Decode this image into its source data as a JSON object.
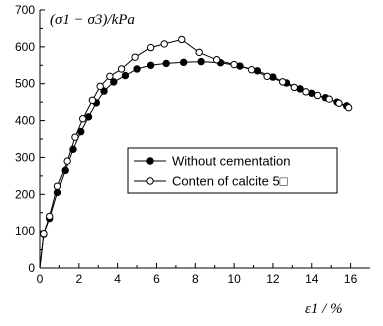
{
  "chart_data": {
    "type": "line",
    "ylabel": "(σ1 − σ3)/kPa",
    "xlabel": "ε1 / %",
    "xlim": [
      0,
      17
    ],
    "ylim": [
      0,
      700
    ],
    "xticks": [
      "0",
      "2",
      "4",
      "6",
      "8",
      "10",
      "12",
      "14",
      "16"
    ],
    "yticks": [
      "0",
      "100",
      "200",
      "300",
      "400",
      "500",
      "600",
      "700"
    ],
    "grid": false,
    "legend_position": "center-right",
    "series": [
      {
        "name": "Without cementation",
        "marker": "filled-circle",
        "color": "#000000",
        "points": [
          [
            0,
            0
          ],
          [
            0.2,
            92
          ],
          [
            0.5,
            134
          ],
          [
            0.9,
            205
          ],
          [
            1.3,
            265
          ],
          [
            1.7,
            322
          ],
          [
            2.1,
            370
          ],
          [
            2.5,
            410
          ],
          [
            2.9,
            448
          ],
          [
            3.3,
            480
          ],
          [
            3.8,
            505
          ],
          [
            4.4,
            522
          ],
          [
            5.0,
            540
          ],
          [
            5.7,
            550
          ],
          [
            6.5,
            555
          ],
          [
            7.4,
            558
          ],
          [
            8.3,
            560
          ],
          [
            9.3,
            557
          ],
          [
            10.3,
            548
          ],
          [
            11.2,
            535
          ],
          [
            12.0,
            518
          ],
          [
            12.7,
            502
          ],
          [
            13.4,
            486
          ],
          [
            14.0,
            474
          ],
          [
            14.7,
            462
          ],
          [
            15.3,
            450
          ],
          [
            15.8,
            440
          ]
        ]
      },
      {
        "name": "Conten of calcite 5□",
        "marker": "open-circle",
        "color": "#000000",
        "points": [
          [
            0,
            0
          ],
          [
            0.2,
            93
          ],
          [
            0.5,
            140
          ],
          [
            0.9,
            222
          ],
          [
            1.4,
            290
          ],
          [
            1.8,
            355
          ],
          [
            2.2,
            405
          ],
          [
            2.7,
            455
          ],
          [
            3.1,
            493
          ],
          [
            3.6,
            520
          ],
          [
            4.2,
            540
          ],
          [
            4.9,
            572
          ],
          [
            5.7,
            598
          ],
          [
            6.4,
            608
          ],
          [
            7.3,
            620
          ],
          [
            8.2,
            585
          ],
          [
            9.1,
            565
          ],
          [
            10.0,
            552
          ],
          [
            10.9,
            538
          ],
          [
            11.7,
            520
          ],
          [
            12.5,
            505
          ],
          [
            13.1,
            490
          ],
          [
            13.7,
            478
          ],
          [
            14.3,
            468
          ],
          [
            14.9,
            458
          ],
          [
            15.4,
            447
          ],
          [
            15.9,
            435
          ]
        ]
      }
    ]
  }
}
